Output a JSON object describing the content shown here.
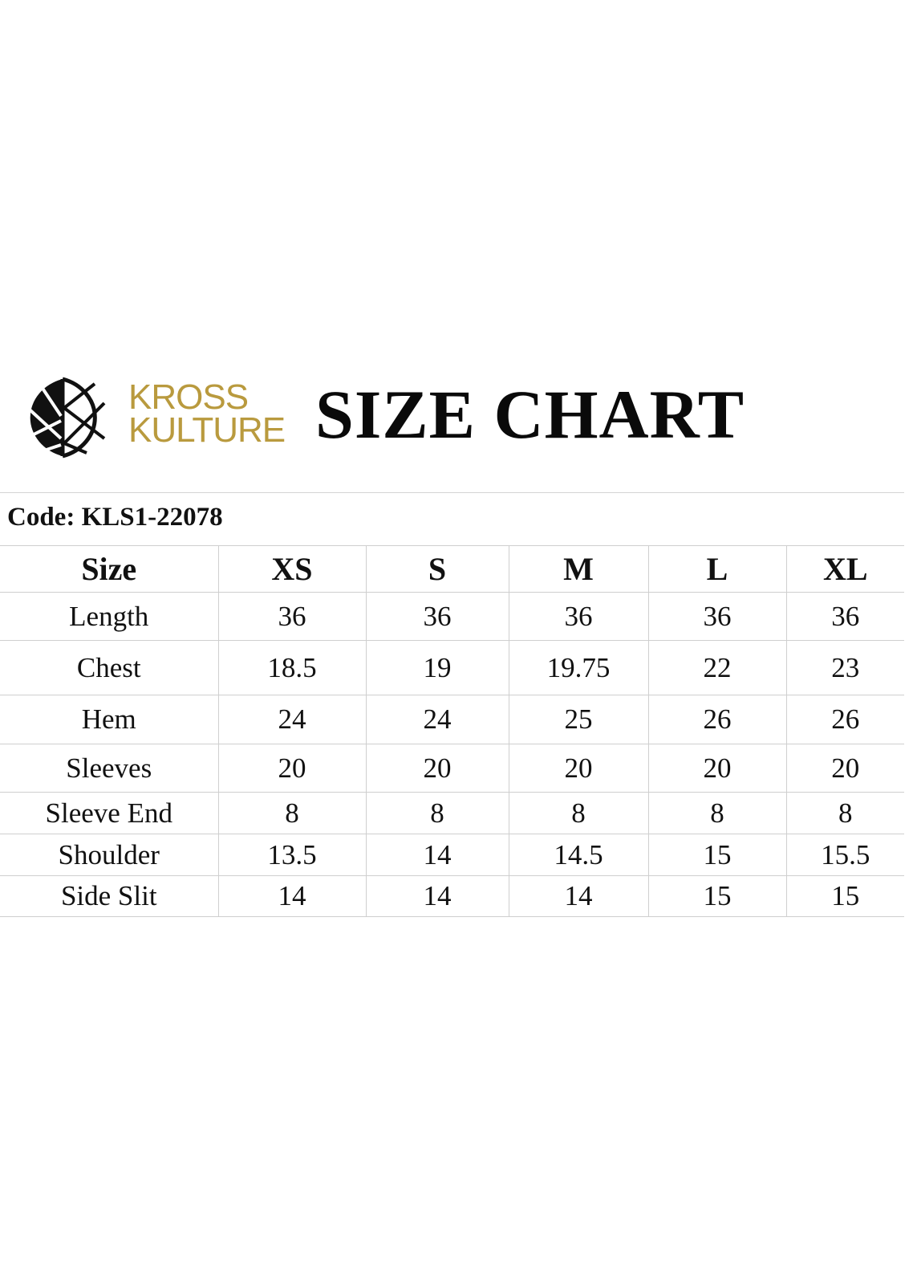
{
  "brand": {
    "line1": "KROSS",
    "line2": "KULTURE",
    "color": "#b99a3e"
  },
  "title": "SIZE CHART",
  "code": "Code: KLS1-22078",
  "table": {
    "headers": [
      "Size",
      "XS",
      "S",
      "M",
      "L",
      "XL"
    ],
    "rows": [
      [
        "Length",
        "36",
        "36",
        "36",
        "36",
        "36"
      ],
      [
        "Chest",
        "18.5",
        "19",
        "19.75",
        "22",
        "23"
      ],
      [
        "Hem",
        "24",
        "24",
        "25",
        "26",
        "26"
      ],
      [
        "Sleeves",
        "20",
        "20",
        "20",
        "20",
        "20"
      ],
      [
        "Sleeve End",
        "8",
        "8",
        "8",
        "8",
        "8"
      ],
      [
        "Shoulder",
        "13.5",
        "14",
        "14.5",
        "15",
        "15.5"
      ],
      [
        "Side Slit",
        "14",
        "14",
        "14",
        "15",
        "15"
      ]
    ]
  }
}
